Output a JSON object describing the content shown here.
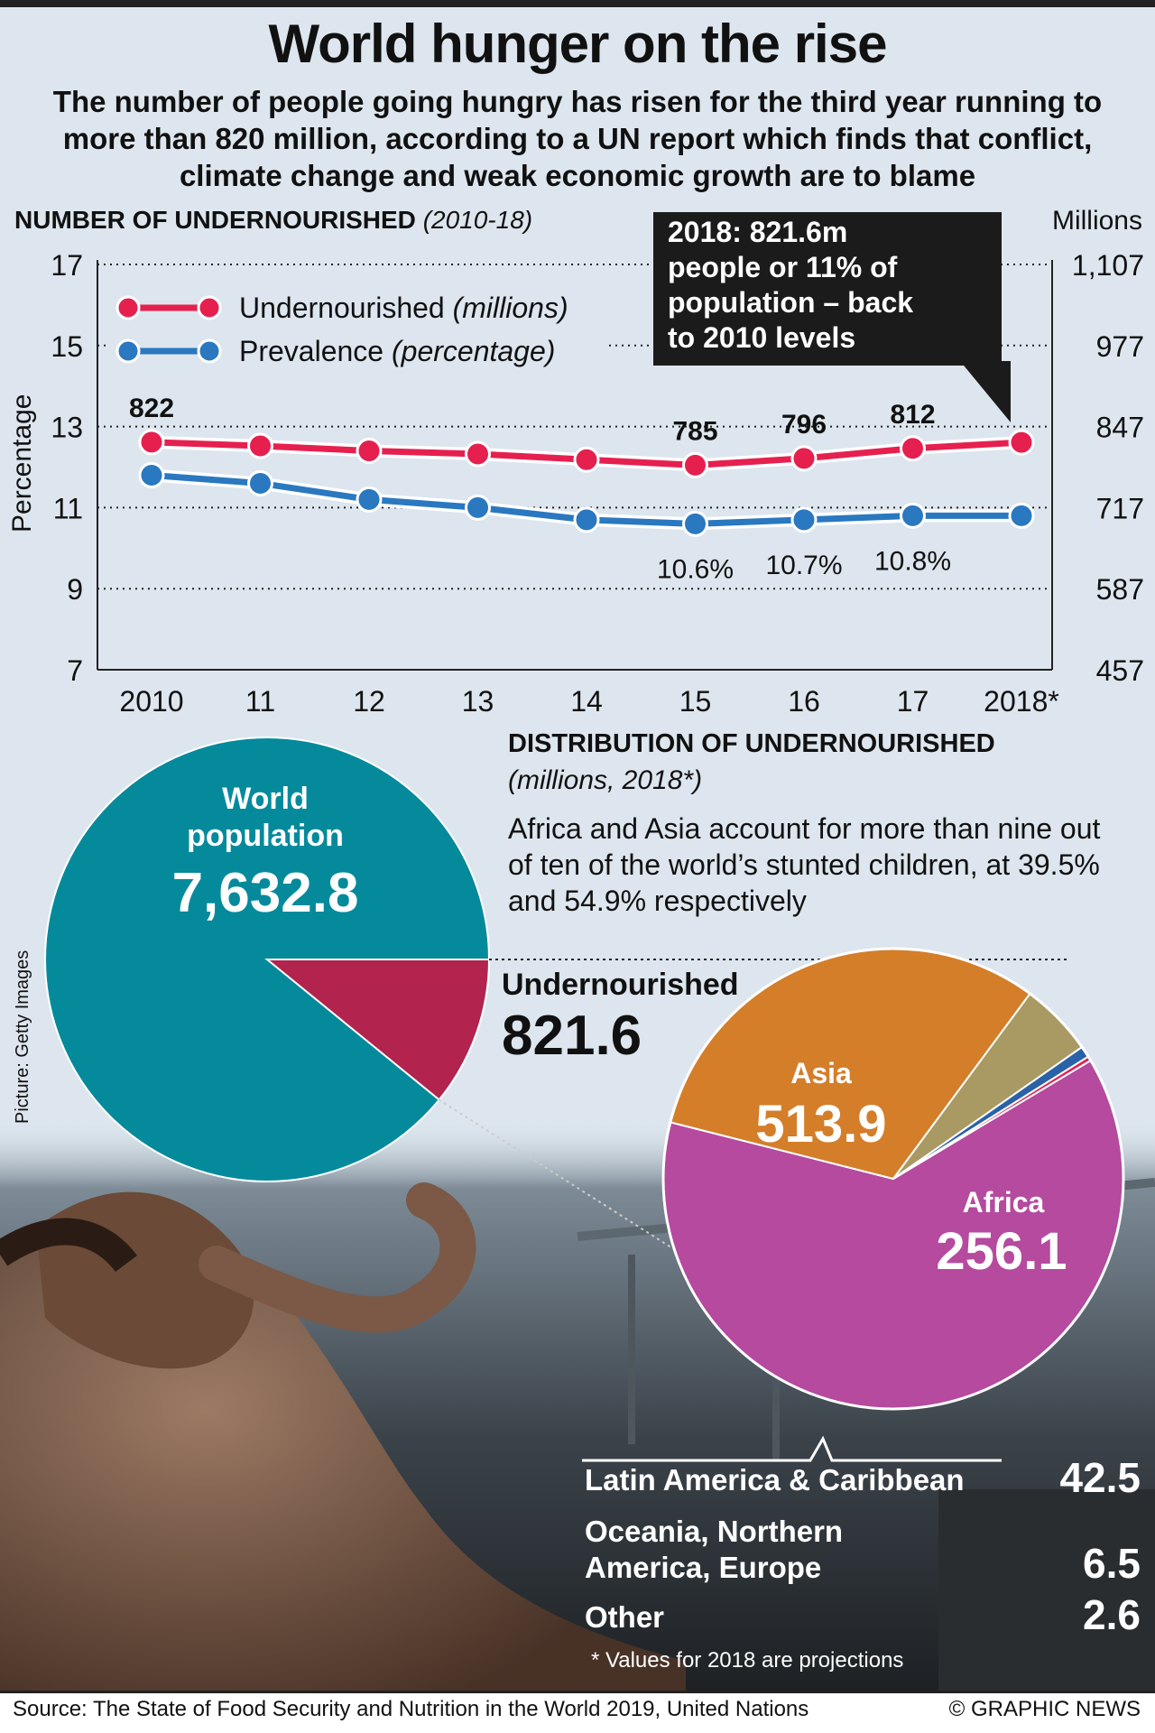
{
  "header": {
    "title": "World hunger on the rise",
    "subtitle": "The number of people going hungry has risen for the third year running to more than 820 million, according to a UN report which finds that conflict, climate change and weak economic growth are to blame"
  },
  "line_section": {
    "title": "NUMBER OF UNDERNOURISHED",
    "title_period": "(2010-18)",
    "left_axis_title": "Percentage",
    "right_axis_title": "Millions",
    "callout": [
      "2018: 821.6m",
      "people or 11% of",
      "population – back",
      "to 2010 levels"
    ]
  },
  "pie_section": {
    "title": "DISTRIBUTION OF UNDERNOURISHED",
    "subtitle": "(millions, 2018*)",
    "note": "Africa and Asia account for more than nine out of ten of the world’s stunted children, at 39.5% and 54.9% respectively",
    "picture_credit": "Picture: Getty Images",
    "legend": [
      {
        "label_lines": [
          "Latin America & Caribbean"
        ],
        "value": "42.5"
      },
      {
        "label_lines": [
          "Oceania, Northern",
          "America, Europe"
        ],
        "value": "6.5"
      },
      {
        "label_lines": [
          "Other"
        ],
        "value": "2.6"
      }
    ]
  },
  "footer": {
    "footnote": "* Values for 2018 are projections",
    "source": "Source: The State of Food Security and Nutrition in the World 2019, United Nations",
    "copyright": "© GRAPHIC NEWS"
  },
  "colors": {
    "undernourished_line": "#e5204f",
    "prevalence_line": "#2a78c0",
    "world_pie": "#058a9c",
    "undernourished_slice": "#b2244d",
    "asia": "#b54a9e",
    "africa": "#d47e2a",
    "latin_america": "#a89a62",
    "oceania_na_europe": "#2a62a8",
    "other": "#e0245a"
  },
  "chart_data": [
    {
      "type": "line",
      "title": "NUMBER OF UNDERNOURISHED (2010-18)",
      "x": [
        "2010",
        "11",
        "12",
        "13",
        "14",
        "15",
        "16",
        "17",
        "2018*"
      ],
      "left_axis": {
        "label": "Percentage",
        "ticks": [
          7,
          9,
          11,
          13,
          15,
          17
        ],
        "range": [
          7,
          17
        ]
      },
      "right_axis": {
        "label": "Millions",
        "ticks": [
          "457",
          "587",
          "717",
          "847",
          "977",
          "1,107"
        ],
        "range": [
          457,
          1107
        ]
      },
      "grid": "dotted horizontal",
      "legend_position": "top-left",
      "series": [
        {
          "name": "Undernourished",
          "name_suffix": "(millions)",
          "axis": "right",
          "values": [
            822,
            816,
            808,
            803,
            794,
            785,
            796,
            812,
            821.6
          ],
          "labels": [
            "822",
            "",
            "",
            "",
            "",
            "785",
            "796",
            "812",
            ""
          ]
        },
        {
          "name": "Prevalence",
          "name_suffix": "(percentage)",
          "axis": "left",
          "values": [
            11.8,
            11.6,
            11.2,
            11.0,
            10.7,
            10.6,
            10.7,
            10.8,
            10.8
          ],
          "labels": [
            "",
            "",
            "",
            "",
            "",
            "10.6%",
            "10.7%",
            "10.8%",
            ""
          ]
        }
      ]
    },
    {
      "type": "pie",
      "title": "World population",
      "slices": [
        {
          "label": "World population",
          "value": 7632.8,
          "value_label": "7,632.8"
        },
        {
          "label": "Undernourished",
          "value": 821.6,
          "value_label": "821.6"
        }
      ]
    },
    {
      "type": "pie",
      "title": "DISTRIBUTION OF UNDERNOURISHED (millions, 2018*)",
      "slices": [
        {
          "label": "Asia",
          "value": 513.9,
          "value_label": "513.9"
        },
        {
          "label": "Africa",
          "value": 256.1,
          "value_label": "256.1"
        },
        {
          "label": "Latin America & Caribbean",
          "value": 42.5
        },
        {
          "label": "Oceania, Northern America, Europe",
          "value": 6.5
        },
        {
          "label": "Other",
          "value": 2.6
        }
      ]
    }
  ]
}
